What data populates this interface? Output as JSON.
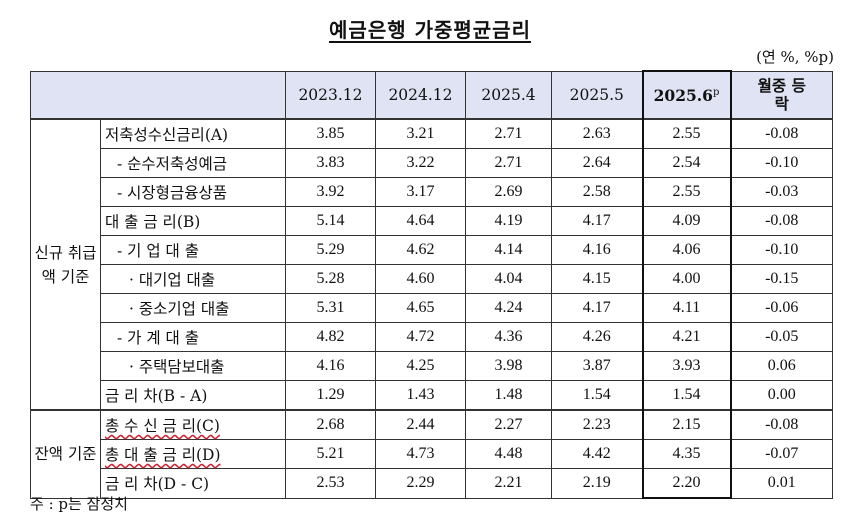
{
  "title": "예금은행 가중평균금리",
  "unit": "(연 %, %p)",
  "headers": [
    "2023.12",
    "2024.12",
    "2025.4",
    "2025.5",
    "2025.6",
    "p",
    "월중 등락"
  ],
  "groups": {
    "new": "신규 취급액 기준",
    "balance": "잔액 기준"
  },
  "rows": [
    {
      "label": "저축성수신금리(A)",
      "vals": [
        "3.85",
        "3.21",
        "2.71",
        "2.63",
        "2.55",
        "-0.08"
      ]
    },
    {
      "label": "- 순수저축성예금",
      "vals": [
        "3.83",
        "3.22",
        "2.71",
        "2.64",
        "2.54",
        "-0.10"
      ]
    },
    {
      "label": "- 시장형금융상품",
      "vals": [
        "3.92",
        "3.17",
        "2.69",
        "2.58",
        "2.55",
        "-0.03"
      ]
    },
    {
      "label": "대 출 금 리(B)",
      "vals": [
        "5.14",
        "4.64",
        "4.19",
        "4.17",
        "4.09",
        "-0.08"
      ]
    },
    {
      "label": "- 기 업 대 출",
      "vals": [
        "5.29",
        "4.62",
        "4.14",
        "4.16",
        "4.06",
        "-0.10"
      ]
    },
    {
      "label": "· 대기업 대출",
      "vals": [
        "5.28",
        "4.60",
        "4.04",
        "4.15",
        "4.00",
        "-0.15"
      ]
    },
    {
      "label": "· 중소기업 대출",
      "vals": [
        "5.31",
        "4.65",
        "4.24",
        "4.17",
        "4.11",
        "-0.06"
      ]
    },
    {
      "label": "- 가 계 대 출",
      "vals": [
        "4.82",
        "4.72",
        "4.36",
        "4.26",
        "4.21",
        "-0.05"
      ]
    },
    {
      "label": "· 주택담보대출",
      "vals": [
        "4.16",
        "4.25",
        "3.98",
        "3.87",
        "3.93",
        "0.06"
      ]
    },
    {
      "label": "금 리 차(B - A)",
      "vals": [
        "1.29",
        "1.43",
        "1.48",
        "1.54",
        "1.54",
        "0.00"
      ]
    },
    {
      "label": "총 수 신 금 리(C)",
      "vals": [
        "2.68",
        "2.44",
        "2.27",
        "2.23",
        "2.15",
        "-0.08"
      ]
    },
    {
      "label": "총 대 출 금 리(D)",
      "vals": [
        "5.21",
        "4.73",
        "4.48",
        "4.42",
        "4.35",
        "-0.07"
      ]
    },
    {
      "label": "금 리 차(D - C)",
      "vals": [
        "2.53",
        "2.29",
        "2.21",
        "2.19",
        "2.20",
        "0.01"
      ]
    }
  ],
  "note": "주 : p는 잠정치"
}
